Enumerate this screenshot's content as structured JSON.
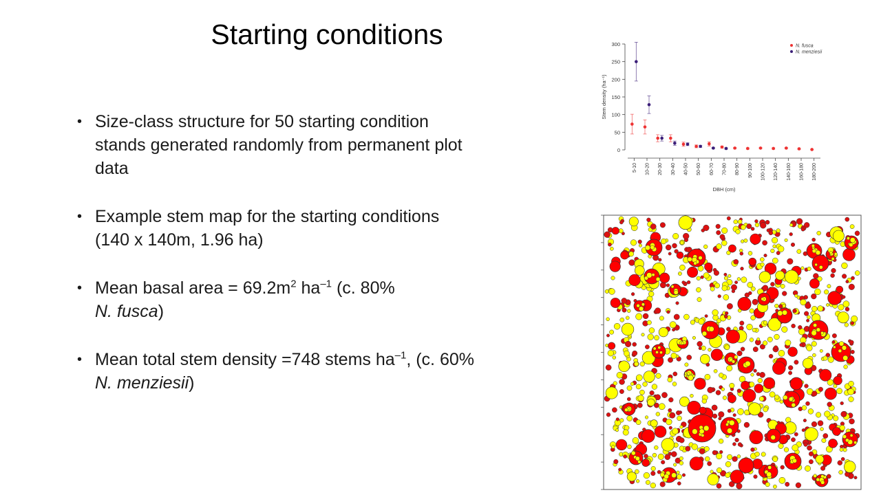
{
  "slide": {
    "title": "Starting conditions",
    "bullets": [
      {
        "text": "Size-class structure for 50 starting condition stands generated randomly from permanent plot data"
      },
      {
        "text": "Example stem map for the starting conditions (140 x 140m, 1.96 ha)"
      },
      {
        "prefix": "Mean basal area = 69.2m",
        "sup1": "2",
        "mid": " ha",
        "sup2": "–1",
        "after": " (c. 80%",
        "italic": "N. fusca",
        "close": ")"
      },
      {
        "prefix": "Mean total stem density =748 stems ha",
        "sup": "–1",
        "after": ", (c. 60%  ",
        "italic": "N. menziesii",
        "close": ")"
      }
    ],
    "bullet_glyph": "•"
  },
  "chart_data": {
    "type": "scatter",
    "xlabel": "DBH (cm)",
    "ylabel": "Stem density  (ha⁻¹)",
    "ylim": [
      0,
      300
    ],
    "yticks": [
      0,
      50,
      100,
      150,
      200,
      250,
      300
    ],
    "categories": [
      "5-10",
      "10-20",
      "20-30",
      "30-40",
      "40-50",
      "50-60",
      "60-70",
      "70-80",
      "80-90",
      "90-100",
      "100-120",
      "120-140",
      "140-160",
      "160-180",
      "180-200"
    ],
    "grid": false,
    "legend_position": "top-right",
    "series": [
      {
        "name": "N. fusca",
        "color": "#ee3333",
        "values": [
          73,
          65,
          33,
          33,
          16,
          10,
          17,
          8,
          5,
          4,
          5,
          4,
          5,
          3,
          1
        ],
        "err": [
          28,
          20,
          10,
          10,
          6,
          4,
          6,
          3,
          2,
          2,
          2,
          2,
          2,
          2,
          1
        ]
      },
      {
        "name": "N. menziesii",
        "color": "#3b1e78",
        "values": [
          250,
          128,
          33,
          19,
          16,
          10,
          5,
          4,
          null,
          null,
          null,
          null,
          null,
          null,
          null
        ],
        "err": [
          55,
          25,
          8,
          6,
          4,
          3,
          2,
          2,
          null,
          null,
          null,
          null,
          null,
          null,
          null
        ]
      }
    ]
  },
  "stem_map": {
    "fusca_color": "#ff0000",
    "menziesii_color": "#ffff00",
    "small_red_color": "#dd1111",
    "stroke": "#333333"
  }
}
